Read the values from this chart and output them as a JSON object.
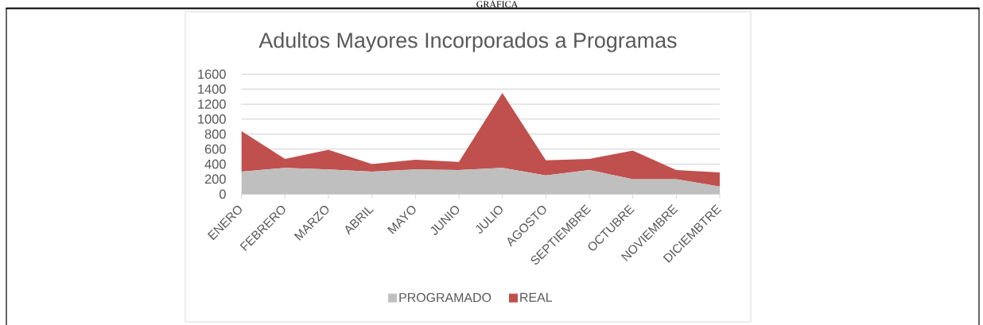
{
  "chart_data": {
    "type": "area",
    "title": "Adultos Mayores Incorporados a Programas",
    "annotations": [
      "GRÁFICA"
    ],
    "categories": [
      "ENERO",
      "FEBRERO",
      "MARZO",
      "ABRIL",
      "MAYO",
      "JUNIO",
      "JULIO",
      "AGOSTO",
      "SEPTIEMBRE",
      "OCTUBRE",
      "NOVIEMBRE",
      "DICIEMBTRE"
    ],
    "series": [
      {
        "name": "PROGRAMADO",
        "color": "#bfbfbf",
        "values": [
          300,
          350,
          330,
          300,
          330,
          320,
          350,
          250,
          320,
          200,
          200,
          100
        ]
      },
      {
        "name": "REAL",
        "color": "#c0504d",
        "values": [
          540,
          120,
          260,
          100,
          130,
          110,
          1000,
          200,
          150,
          380,
          120,
          190
        ]
      }
    ],
    "stacked": true,
    "ylim": [
      0,
      1600
    ],
    "yticks": [
      0,
      200,
      400,
      600,
      800,
      1000,
      1200,
      1400,
      1600
    ],
    "grid": "y",
    "legend": "bottom"
  }
}
